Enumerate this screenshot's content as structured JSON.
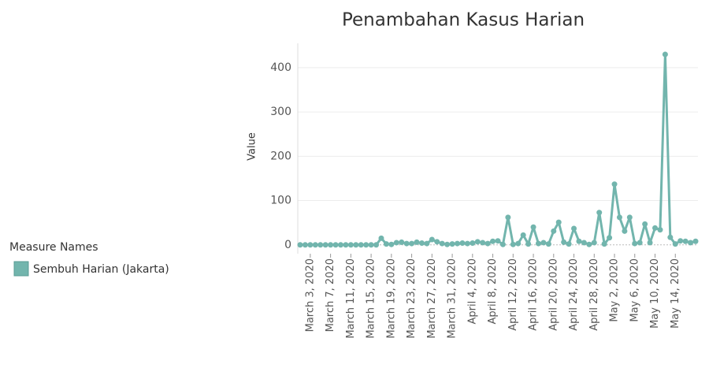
{
  "chart_data": {
    "type": "line",
    "title": "Penambahan Kasus Harian",
    "y_label": "Value",
    "legend_title": "Measure Names",
    "categories": [
      null,
      null,
      "March 3, 2020",
      null,
      null,
      null,
      "March 7, 2020",
      null,
      null,
      null,
      "March 11, 2020",
      null,
      null,
      null,
      "March 15, 2020",
      null,
      null,
      null,
      "March 19, 2020",
      null,
      null,
      null,
      "March 23, 2020",
      null,
      null,
      null,
      "March 27, 2020",
      null,
      null,
      null,
      "March 31, 2020",
      null,
      null,
      null,
      "April 4, 2020",
      null,
      null,
      null,
      "April 8, 2020",
      null,
      null,
      null,
      "April 12, 2020",
      null,
      null,
      null,
      "April 16, 2020",
      null,
      null,
      null,
      "April 20, 2020",
      null,
      null,
      null,
      "April 24, 2020",
      null,
      null,
      null,
      "April 28, 2020",
      null,
      null,
      null,
      "May 2, 2020",
      null,
      null,
      null,
      "May 6, 2020",
      null,
      null,
      null,
      "May 10, 2020",
      null,
      null,
      null,
      "May 14, 2020",
      null,
      null,
      null,
      null
    ],
    "series": [
      {
        "name": "Sembuh Harian (Jakarta)",
        "color": "#72b5ad",
        "values": [
          0,
          0,
          0,
          0,
          0,
          0,
          0,
          0,
          0,
          0,
          0,
          0,
          0,
          0,
          0,
          0,
          15,
          2,
          1,
          5,
          6,
          3,
          3,
          6,
          4,
          3,
          12,
          7,
          3,
          1,
          2,
          3,
          4,
          3,
          4,
          7,
          5,
          3,
          8,
          9,
          1,
          62,
          1,
          3,
          22,
          2,
          40,
          3,
          5,
          2,
          31,
          51,
          6,
          2,
          37,
          8,
          5,
          1,
          5,
          73,
          2,
          16,
          137,
          62,
          31,
          62,
          3,
          5,
          47,
          5,
          38,
          34,
          430,
          17,
          2,
          9,
          8,
          5,
          8
        ]
      }
    ],
    "ylim": [
      -20,
      455
    ],
    "yticks": [
      0,
      100,
      200,
      300,
      400
    ],
    "grid": true
  }
}
